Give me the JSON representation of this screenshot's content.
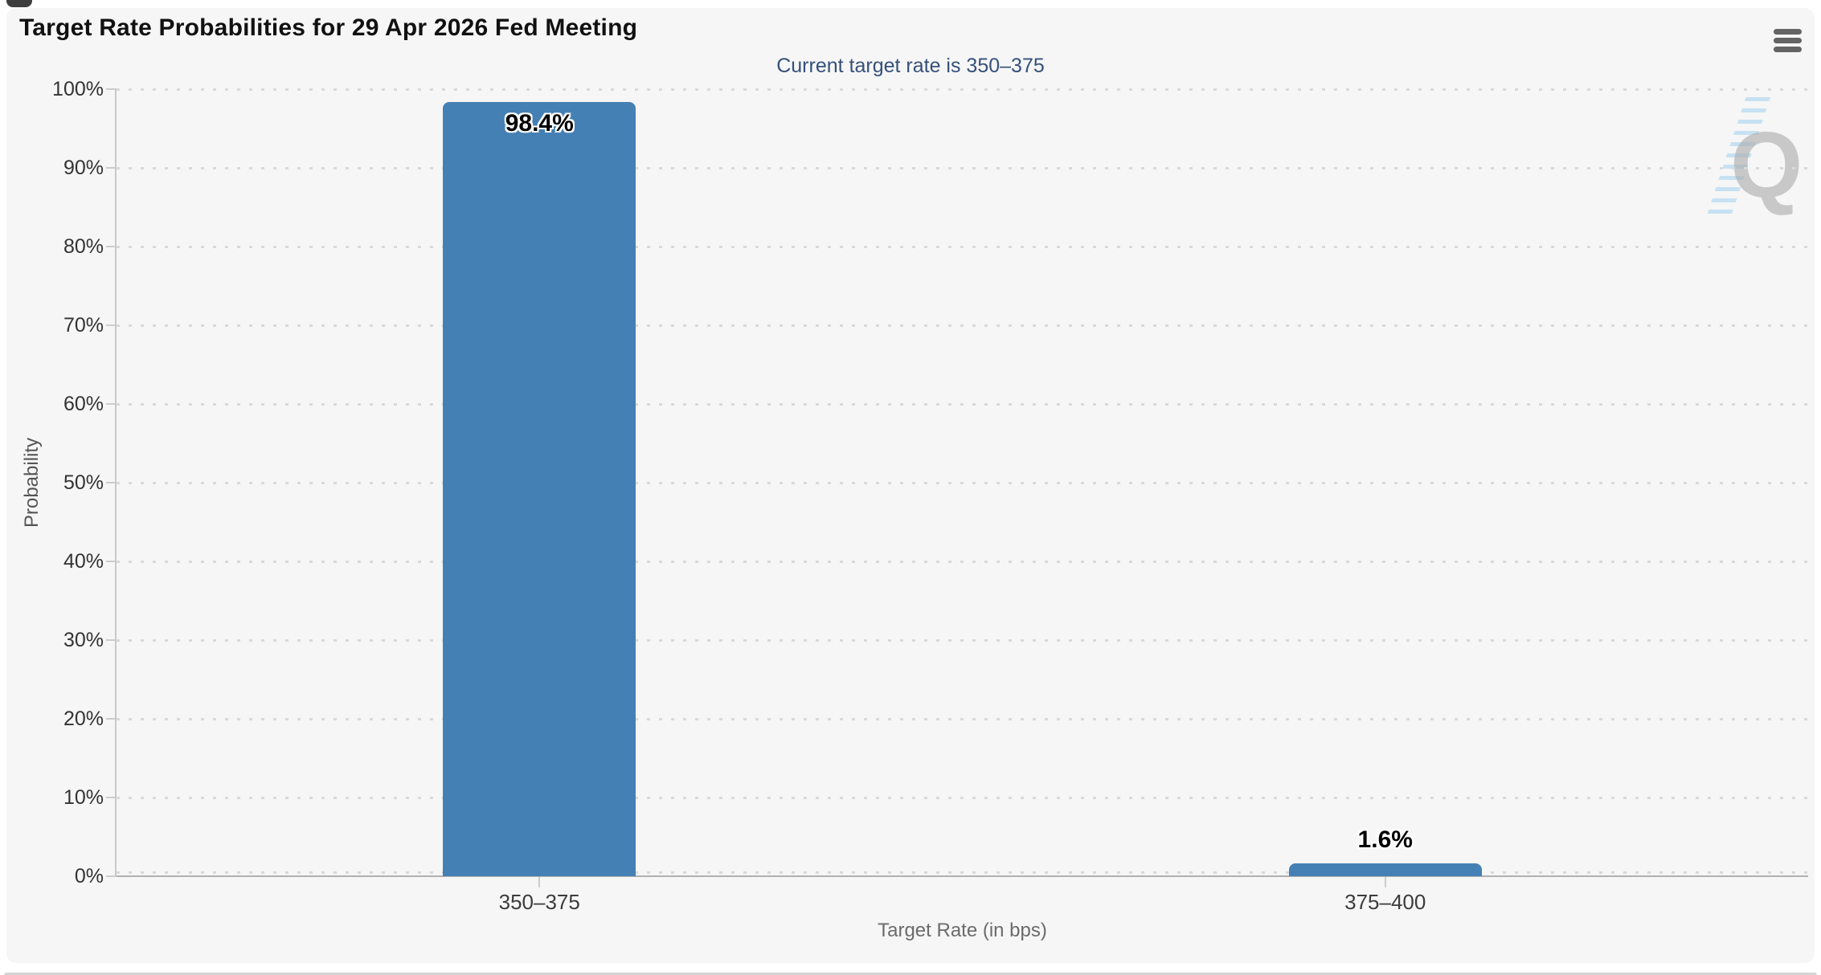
{
  "header": {
    "menu_icon": "hamburger-menu-icon"
  },
  "chart_data": {
    "type": "bar",
    "title": "Target Rate Probabilities for 29 Apr 2026 Fed Meeting",
    "subtitle": "Current target rate is 350–375",
    "categories": [
      "350–375",
      "375–400"
    ],
    "values": [
      98.4,
      1.6
    ],
    "data_labels": [
      "98.4%",
      "1.6%"
    ],
    "series": [
      {
        "name": "Probability",
        "values": [
          98.4,
          1.6
        ]
      }
    ],
    "xlabel": "Target Rate (in bps)",
    "ylabel": "Probability",
    "ylim": [
      0,
      100
    ],
    "ytick_step": 10,
    "ytick_suffix": "%",
    "ytick_labels": [
      "0%",
      "10%",
      "20%",
      "30%",
      "40%",
      "50%",
      "60%",
      "70%",
      "80%",
      "90%",
      "100%"
    ],
    "grid": "dotted-horizontal",
    "legend": "none",
    "bar_color": "#4580b4"
  },
  "watermark": {
    "letter": "Q"
  },
  "colors": {
    "page_bg": "#ffffff",
    "card_bg": "#f6f6f6",
    "bar": "#4580b4",
    "title": "#111111",
    "subtitle": "#35507a",
    "axis_line": "#b0b0b0",
    "gridline": "#d9d9d9",
    "axis_label": "#333333",
    "axis_title": "#6b6b6b"
  }
}
